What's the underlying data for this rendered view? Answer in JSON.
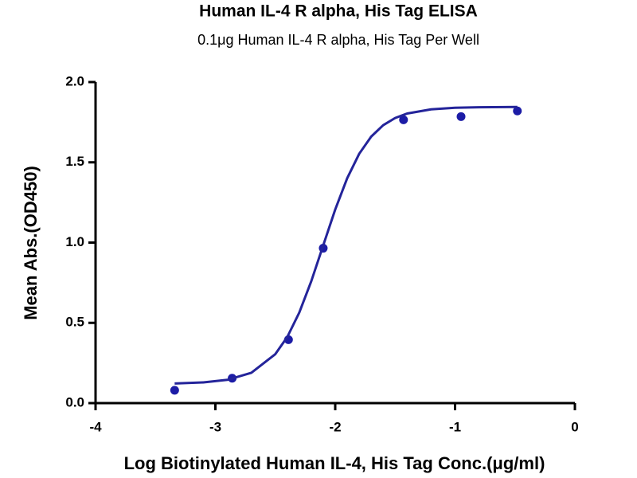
{
  "chart_data": {
    "type": "scatter",
    "title": "Human IL-4 R alpha, His Tag ELISA",
    "subtitle": "0.1μg Human IL-4 R alpha, His Tag Per Well",
    "x_label": "Log Biotinylated Human IL-4, His Tag Conc.(μg/ml)",
    "y_label": "Mean Abs.(OD450)",
    "xlim": [
      -4,
      0
    ],
    "xticks": [
      -4,
      -3,
      -2,
      -1,
      0
    ],
    "ylim": [
      0,
      2
    ],
    "yticks": [
      {
        "value": 0,
        "label": "0.0"
      },
      {
        "value": 0.5,
        "label": "0.5"
      },
      {
        "value": 1,
        "label": "1.0"
      },
      {
        "value": 1.5,
        "label": "1.5"
      },
      {
        "value": 2,
        "label": "2.0"
      }
    ],
    "series": [
      {
        "type": "scatter",
        "color": "#1c1ca6",
        "x": [
          -3.34,
          -2.86,
          -2.39,
          -2.1,
          -1.43,
          -0.95,
          -0.48
        ],
        "values": [
          0.08,
          0.155,
          0.395,
          0.965,
          1.765,
          1.785,
          1.82
        ]
      },
      {
        "type": "line",
        "color": "#24249a",
        "x": [
          -3.34,
          -3.1,
          -2.9,
          -2.7,
          -2.5,
          -2.4,
          -2.3,
          -2.2,
          -2.1,
          -2.0,
          -1.9,
          -1.8,
          -1.7,
          -1.6,
          -1.5,
          -1.4,
          -1.2,
          -1.0,
          -0.8,
          -0.48
        ],
        "values": [
          0.122,
          0.129,
          0.145,
          0.189,
          0.305,
          0.412,
          0.564,
          0.759,
          0.983,
          1.206,
          1.401,
          1.553,
          1.66,
          1.731,
          1.776,
          1.804,
          1.83,
          1.84,
          1.843,
          1.845
        ]
      }
    ]
  }
}
